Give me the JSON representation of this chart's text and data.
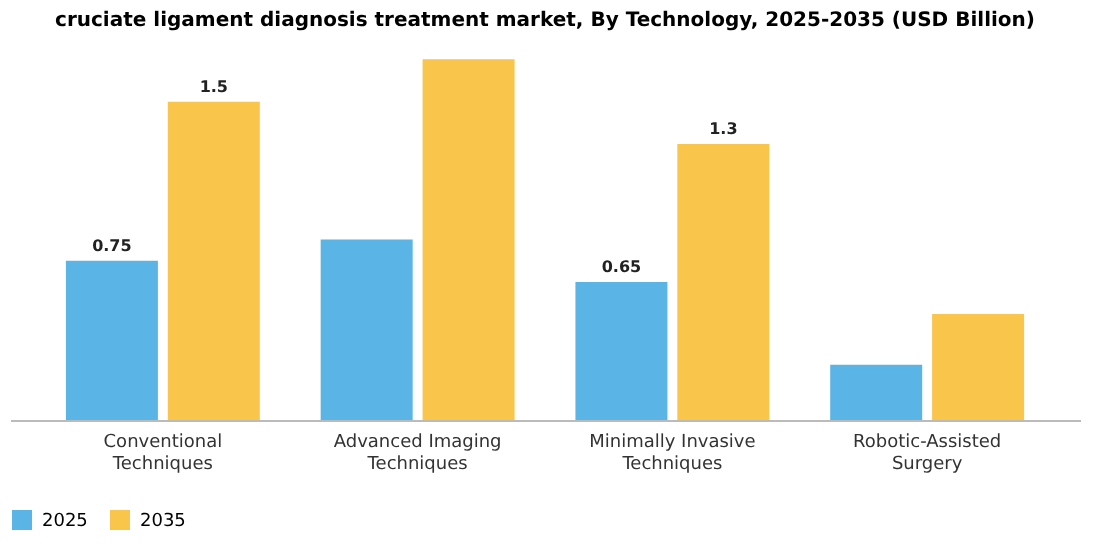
{
  "chart_data": {
    "type": "bar",
    "title": "cruciate ligament diagnosis treatment market, By Technology, 2025-2035 (USD Billion)",
    "categories": [
      "Conventional Techniques",
      "Advanced Imaging Techniques",
      "Minimally Invasive Techniques",
      "Robotic-Assisted Surgery"
    ],
    "series": [
      {
        "name": "2025",
        "color": "#5ab4e5",
        "values": [
          0.75,
          0.85,
          0.65,
          0.26
        ],
        "value_labels": [
          "0.75",
          null,
          "0.65",
          null
        ]
      },
      {
        "name": "2035",
        "color": "#f9c54a",
        "values": [
          1.5,
          1.7,
          1.3,
          0.5
        ],
        "value_labels": [
          "1.5",
          null,
          "1.3",
          null
        ]
      }
    ],
    "legend": "bottom",
    "grid": false
  }
}
